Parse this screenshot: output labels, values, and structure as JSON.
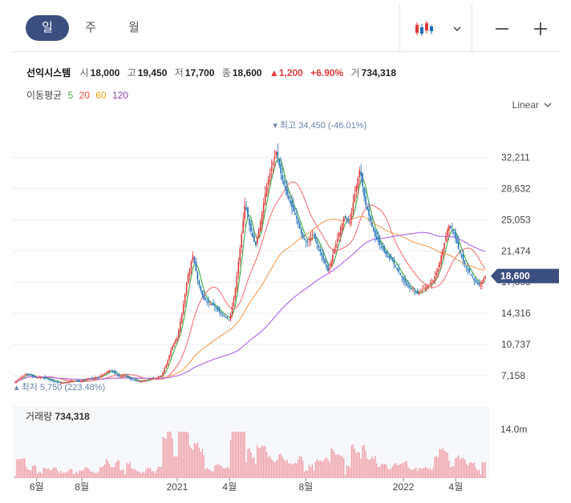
{
  "tabs": [
    {
      "label": "일",
      "active": true
    },
    {
      "label": "주",
      "active": false
    },
    {
      "label": "월",
      "active": false
    }
  ],
  "toolbar": {
    "chart_type_icon": "candlestick-icon",
    "dropdown_icon": "chevron-down-icon",
    "zoom_out_icon": "minus-icon",
    "zoom_in_icon": "plus-icon"
  },
  "quote": {
    "name": "선익시스템",
    "open_label": "시",
    "open": "18,000",
    "high_label": "고",
    "high": "19,450",
    "low_label": "저",
    "low": "17,700",
    "close_label": "종",
    "close": "18,600",
    "change": "1,200",
    "change_pct": "+6.90%",
    "volume_label": "거",
    "volume": "734,318"
  },
  "ma": {
    "label": "이동평균",
    "periods": [
      {
        "value": "5",
        "color": "#4caf50"
      },
      {
        "value": "20",
        "color": "#e74c3c"
      },
      {
        "value": "60",
        "color": "#f39c12"
      },
      {
        "value": "120",
        "color": "#8e44ad"
      }
    ]
  },
  "scale_label": "Linear",
  "colors": {
    "up": "#e03a3a",
    "down": "#1f6fb8",
    "accent": "#3d4f80",
    "ma5": "#4caf50",
    "ma20": "#f08080",
    "ma60": "#f4a460",
    "ma120": "#b070e8",
    "volume": "#f0a0a8"
  },
  "volume_panel": {
    "label": "거래량",
    "value": "734,318",
    "max_label": "14.0m"
  },
  "chart_data": {
    "type": "line",
    "price_scale": "linear",
    "ylim": [
      4300,
      36500
    ],
    "y_ticks": [
      "32,211",
      "28,632",
      "25,053",
      "21,474",
      "17,895",
      "14,316",
      "10,737",
      "7,158"
    ],
    "x_ticks": [
      "6월",
      "8월",
      "2021",
      "4월",
      "8월",
      "2022",
      "4월"
    ],
    "series": [
      {
        "values": [
          6.4,
          6.9,
          7.4,
          7.2,
          6.9,
          7.0,
          6.8,
          6.6,
          6.4,
          6.3,
          6.4,
          6.6,
          6.5,
          6.6,
          6.8,
          6.9,
          7.0,
          7.3,
          7.8,
          7.5,
          7.0,
          7.2,
          6.8,
          6.6,
          6.5,
          6.6,
          6.8,
          6.9,
          7.2,
          8.5,
          10.5,
          11.5,
          14.5,
          18.5,
          21.0,
          18.0,
          16.0,
          15.5,
          15.2,
          14.5,
          14.0,
          13.5,
          16.5,
          21.5,
          27.0,
          24.0,
          22.0,
          25.0,
          28.5,
          31.0,
          33.0,
          30.0,
          28.0,
          26.5,
          25.0,
          23.0,
          22.5,
          23.5,
          22.0,
          20.5,
          19.0,
          21.5,
          23.5,
          25.5,
          24.5,
          28.0,
          31.0,
          27.0,
          25.0,
          23.0,
          22.0,
          21.0,
          20.5,
          19.5,
          18.5,
          17.5,
          17.0,
          16.5,
          17.0,
          17.5,
          18.0,
          19.5,
          22.0,
          24.5,
          23.5,
          21.5,
          20.0,
          19.0,
          18.0,
          17.5,
          18.6
        ]
      }
    ],
    "high_marker": "최고 34,450 (-46.01%)",
    "low_marker": "최저 5,750 (223.48%)",
    "last_price_label": "18,600"
  }
}
